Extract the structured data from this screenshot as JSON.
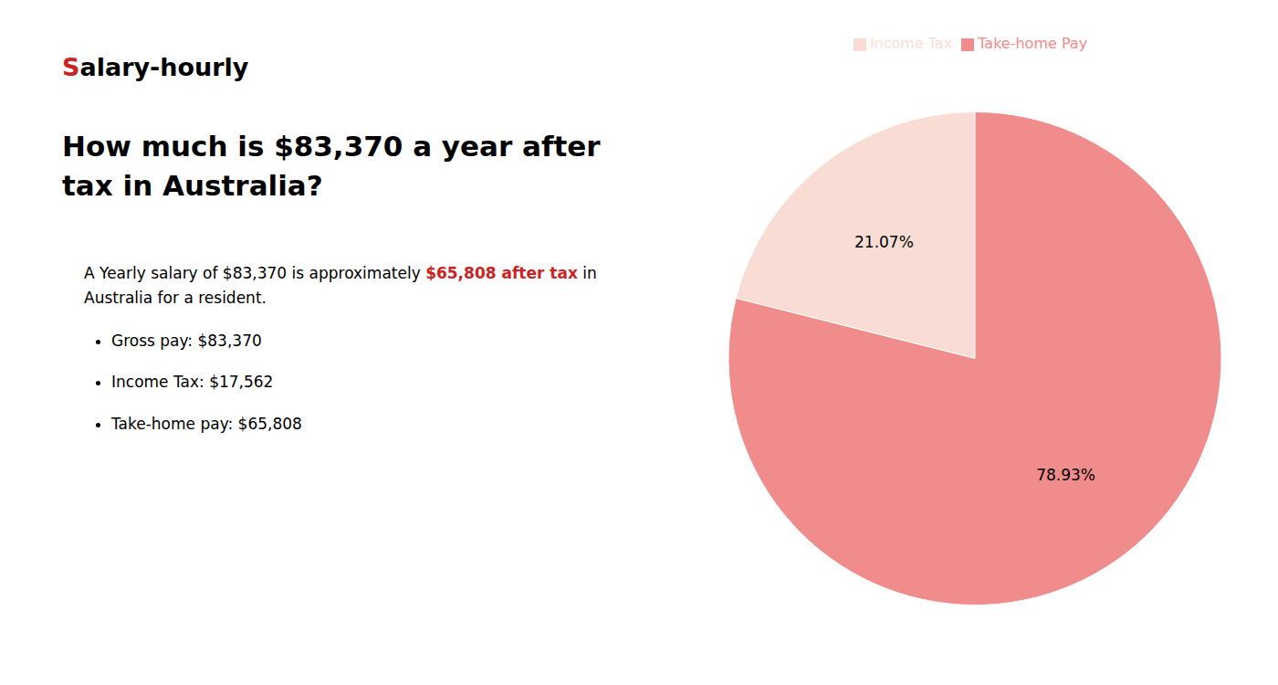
{
  "chart_data": {
    "type": "pie",
    "title": "How much is $83,370 a year after tax in Australia?",
    "annotations": [
      {
        "text": "S",
        "color": "#cc2222"
      },
      {
        "text": "alary-hourly"
      },
      {
        "text": "A Yearly salary of $83,370 is approximately "
      },
      {
        "text": "$65,808 after tax",
        "color": "#cc2222"
      },
      {
        "text": " in"
      },
      {
        "text": "Australia for a resident."
      },
      {
        "text": "Gross pay: $83,370"
      },
      {
        "text": "Income Tax: $17,562"
      },
      {
        "text": "Take-home pay: $65,808"
      }
    ],
    "categories": [
      "Income Tax",
      "Take-home Pay"
    ],
    "values": [
      21.07,
      78.93
    ],
    "value_labels": [
      "21.07%",
      "78.93%"
    ],
    "colors": [
      "#f9ddd5",
      "#f08c8c"
    ],
    "data_labels": true,
    "legend": "top"
  }
}
